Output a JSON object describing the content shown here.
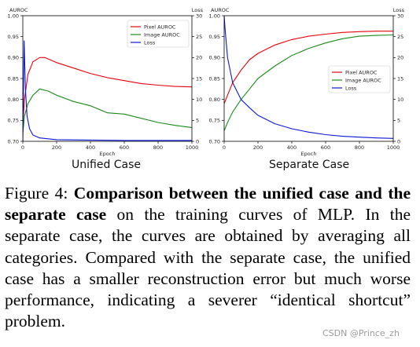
{
  "chart_data": [
    {
      "type": "line",
      "panel_label": "Unified Case",
      "xlabel": "Epoch",
      "ylabel_left": "AUROC",
      "ylabel_right": "Loss",
      "xlim": [
        0,
        1000
      ],
      "ylim_left": [
        0.7,
        1.0
      ],
      "ylim_right": [
        0,
        30
      ],
      "x_ticks": [
        0,
        200,
        400,
        600,
        800,
        1000
      ],
      "y_ticks_left": [
        0.7,
        0.75,
        0.8,
        0.85,
        0.9,
        0.95,
        1.0
      ],
      "y_ticks_right": [
        0,
        5,
        10,
        15,
        20,
        25,
        30
      ],
      "legend_position": "top-right",
      "grid": false,
      "series": [
        {
          "name": "Pixel AUROC",
          "axis": "left",
          "color": "#e8000b",
          "x": [
            0,
            10,
            30,
            60,
            100,
            130,
            160,
            200,
            300,
            400,
            500,
            600,
            700,
            800,
            900,
            1000
          ],
          "y": [
            0.74,
            0.8,
            0.86,
            0.89,
            0.9,
            0.9,
            0.895,
            0.888,
            0.875,
            0.862,
            0.852,
            0.845,
            0.838,
            0.834,
            0.831,
            0.83
          ]
        },
        {
          "name": "Image AUROC",
          "axis": "left",
          "color": "#1a8a1a",
          "x": [
            0,
            10,
            30,
            60,
            100,
            150,
            200,
            300,
            400,
            500,
            600,
            700,
            800,
            900,
            1000
          ],
          "y": [
            0.72,
            0.76,
            0.79,
            0.81,
            0.825,
            0.82,
            0.81,
            0.795,
            0.785,
            0.768,
            0.765,
            0.755,
            0.745,
            0.738,
            0.733
          ]
        },
        {
          "name": "Loss",
          "axis": "right",
          "color": "#0a17d8",
          "x": [
            0,
            8,
            15,
            25,
            40,
            60,
            100,
            200,
            400,
            600,
            800,
            1000
          ],
          "y": [
            0.1,
            24,
            13,
            6,
            3,
            1.5,
            0.8,
            0.4,
            0.3,
            0.2,
            0.2,
            0.2
          ]
        }
      ]
    },
    {
      "type": "line",
      "panel_label": "Separate Case",
      "xlabel": "Epoch",
      "ylabel_left": "AUROC",
      "ylabel_right": "Loss",
      "xlim": [
        0,
        1000
      ],
      "ylim_left": [
        0.7,
        1.0
      ],
      "ylim_right": [
        0,
        30
      ],
      "x_ticks": [
        0,
        200,
        400,
        600,
        800,
        1000
      ],
      "y_ticks_left": [
        0.7,
        0.75,
        0.8,
        0.85,
        0.9,
        0.95,
        1.0
      ],
      "y_ticks_right": [
        0,
        5,
        10,
        15,
        20,
        25,
        30
      ],
      "legend_position": "center-right",
      "grid": false,
      "series": [
        {
          "name": "Pixel AUROC",
          "axis": "left",
          "color": "#e8000b",
          "x": [
            0,
            20,
            50,
            100,
            150,
            200,
            300,
            400,
            500,
            600,
            700,
            800,
            900,
            1000
          ],
          "y": [
            0.79,
            0.81,
            0.84,
            0.87,
            0.895,
            0.91,
            0.93,
            0.943,
            0.951,
            0.956,
            0.96,
            0.962,
            0.963,
            0.963
          ]
        },
        {
          "name": "Image AUROC",
          "axis": "left",
          "color": "#1a8a1a",
          "x": [
            0,
            20,
            50,
            100,
            150,
            200,
            300,
            400,
            500,
            600,
            700,
            800,
            900,
            1000
          ],
          "y": [
            0.725,
            0.745,
            0.77,
            0.8,
            0.825,
            0.85,
            0.88,
            0.905,
            0.922,
            0.935,
            0.945,
            0.951,
            0.953,
            0.954
          ]
        },
        {
          "name": "Loss",
          "axis": "right",
          "color": "#0a17d8",
          "x": [
            0,
            5,
            20,
            50,
            100,
            150,
            200,
            300,
            400,
            500,
            600,
            700,
            800,
            900,
            1000
          ],
          "y": [
            30,
            27,
            20,
            14,
            10,
            8,
            6.2,
            4.2,
            3,
            2.2,
            1.6,
            1.2,
            1,
            0.8,
            0.7
          ]
        }
      ]
    }
  ],
  "caption": {
    "figure_label": "Figure 4:",
    "bold_text": "Comparison between the unified case and the separate case",
    "body_text": "on the training curves of MLP. In the separate case, the curves are obtained by averaging all categories. Compared with the separate case, the unified case has a smaller reconstruction error but much worse performance, indicating a severer “identical shortcut” problem."
  },
  "watermark": "CSDN @Prince_zh"
}
